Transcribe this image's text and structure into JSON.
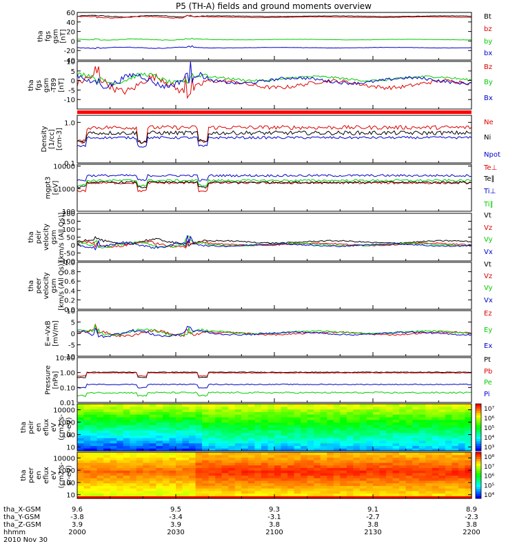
{
  "title": "P5 (TH-A) fields and ground moments overview",
  "chart_data": [
    {
      "type": "line",
      "ylabel": [
        "tha",
        "fgs",
        "gsm",
        "[nT]"
      ],
      "ylim": [
        -40,
        60
      ],
      "yticks": [
        -40,
        -20,
        0,
        20,
        40,
        60
      ],
      "yticklabels": [
        "-40",
        "-20",
        "0",
        "20",
        "40",
        "60"
      ],
      "legend_placement": "right",
      "series": [
        {
          "name": "Bt",
          "color": "#000000",
          "base": 52,
          "amp": 1.0
        },
        {
          "name": "bz",
          "color": "#dd0000",
          "base": 50,
          "amp": 1.0
        },
        {
          "name": "by",
          "color": "#00cc00",
          "base": 3,
          "amp": 0.8
        },
        {
          "name": "bx",
          "color": "#0000cc",
          "base": -14,
          "amp": 0.8
        }
      ]
    },
    {
      "type": "line",
      "ylabel": [
        "tha",
        "fgs",
        "gsm",
        "-T89",
        "[nT]"
      ],
      "ylim": [
        -15,
        10
      ],
      "yticks": [
        -10,
        -5,
        0,
        5,
        10
      ],
      "yticklabels": [
        "-10",
        "-5",
        "0",
        "5",
        "10"
      ],
      "legend_placement": "right",
      "series": [
        {
          "name": "Bz",
          "color": "#dd0000",
          "base": -2,
          "amp": 2.5
        },
        {
          "name": "By",
          "color": "#00cc00",
          "base": 1,
          "amp": 1.5
        },
        {
          "name": "Bx",
          "color": "#0000cc",
          "base": 0,
          "amp": 2.0
        }
      ]
    },
    {
      "type": "line",
      "ylabel": [
        "Density",
        "[1/cc]",
        "[cm-3]"
      ],
      "ylim": [
        0.1,
        1.5
      ],
      "scale": "log",
      "yticks": [
        0.1,
        1.0
      ],
      "yticklabels": [
        "0.1",
        "1.0"
      ],
      "legend_placement": "right",
      "series": [
        {
          "name": "Ne",
          "color": "#dd0000",
          "base": 0.75,
          "amp": 0.05
        },
        {
          "name": "Ni",
          "color": "#000000",
          "base": 0.55,
          "amp": 0.05
        },
        {
          "name": "Npot",
          "color": "#0000cc",
          "base": 0.42,
          "amp": 0.03
        }
      ]
    },
    {
      "type": "line",
      "ylabel": [
        "mgpt3",
        "[eV]"
      ],
      "ylim": [
        100,
        12000
      ],
      "scale": "log",
      "yticks": [
        100,
        1000,
        10000
      ],
      "yticklabels": [
        "100",
        "1000",
        "10000"
      ],
      "legend_placement": "right",
      "series": [
        {
          "name": "Te⊥",
          "color": "#dd0000",
          "base": 1800,
          "amp": 0.05
        },
        {
          "name": "Te∥",
          "color": "#000000",
          "base": 1900,
          "amp": 0.05
        },
        {
          "name": "Ti⊥",
          "color": "#0000cc",
          "base": 3800,
          "amp": 0.05
        },
        {
          "name": "Ti∥",
          "color": "#00cc00",
          "base": 2300,
          "amp": 0.05
        }
      ]
    },
    {
      "type": "line",
      "ylabel": [
        "tha",
        "peir",
        "velocity",
        "gsm",
        "[km/s (All Qs)]"
      ],
      "ylim": [
        -100,
        200
      ],
      "yticks": [
        -100,
        -50,
        0,
        50,
        100,
        150,
        200
      ],
      "yticklabels": [
        "-100",
        "-50",
        "0",
        "50",
        "100",
        "150",
        "200"
      ],
      "legend_placement": "right",
      "series": [
        {
          "name": "Vt",
          "color": "#000000",
          "base": 20,
          "amp": 10
        },
        {
          "name": "Vz",
          "color": "#dd0000",
          "base": 5,
          "amp": 10
        },
        {
          "name": "Vy",
          "color": "#00cc00",
          "base": 3,
          "amp": 10
        },
        {
          "name": "Vx",
          "color": "#0000cc",
          "base": 0,
          "amp": 10
        }
      ]
    },
    {
      "type": "line",
      "ylabel": [
        "tha",
        "peer",
        "velocity",
        "gsm",
        "[km/s (All Qs)]"
      ],
      "ylim": [
        0.0,
        1.0
      ],
      "yticks": [
        0.0,
        0.2,
        0.4,
        0.6,
        0.8,
        1.0
      ],
      "yticklabels": [
        "0.0",
        "0.2",
        "0.4",
        "0.6",
        "0.8",
        "1.0"
      ],
      "legend_placement": "right",
      "series": [
        {
          "name": "Vt",
          "color": "#000000"
        },
        {
          "name": "Vz",
          "color": "#dd0000"
        },
        {
          "name": "Vy",
          "color": "#00cc00"
        },
        {
          "name": "Vx",
          "color": "#0000cc"
        }
      ]
    },
    {
      "type": "line",
      "ylabel": [
        "E=-VxB",
        "[mV/m]"
      ],
      "ylim": [
        -10,
        10
      ],
      "yticks": [
        -10,
        -5,
        0,
        5,
        10
      ],
      "yticklabels": [
        "-10",
        "-5",
        "0",
        "5",
        "10"
      ],
      "legend_placement": "right",
      "series": [
        {
          "name": "Ez",
          "color": "#dd0000",
          "base": 0,
          "amp": 0.8
        },
        {
          "name": "Ey",
          "color": "#00cc00",
          "base": 0.5,
          "amp": 0.8
        },
        {
          "name": "Ex",
          "color": "#0000cc",
          "base": 0,
          "amp": 0.8
        }
      ]
    },
    {
      "type": "line",
      "ylabel": [
        "Pressure",
        "[nPa]"
      ],
      "ylim": [
        0.01,
        10
      ],
      "scale": "log",
      "yticks": [
        0.01,
        0.1,
        1.0,
        10.0
      ],
      "yticklabels": [
        "0.01",
        "0.10",
        "1.00",
        "10.00"
      ],
      "legend_placement": "right",
      "series": [
        {
          "name": "Pt",
          "color": "#000000",
          "base": 1.05,
          "amp": 0.02
        },
        {
          "name": "Pb",
          "color": "#dd0000",
          "base": 0.95,
          "amp": 0.02
        },
        {
          "name": "Pe",
          "color": "#00cc00",
          "base": 0.045,
          "amp": 0.05
        },
        {
          "name": "Pi",
          "color": "#0000cc",
          "base": 0.16,
          "amp": 0.03
        }
      ]
    },
    {
      "type": "heatmap",
      "ylabel": [
        "tha",
        "peir",
        "en",
        "eflux",
        "eV",
        "(cm2-s-",
        "sr-eV)"
      ],
      "ylim": [
        5,
        30000
      ],
      "scale": "log",
      "yticks": [
        10,
        100,
        1000,
        10000
      ],
      "yticklabels": [
        "10",
        "100",
        "1000",
        "10000"
      ],
      "colorbar": {
        "ticks": [
          "10⁷",
          "10⁶",
          "10⁵",
          "10⁴",
          "10³"
        ]
      }
    },
    {
      "type": "heatmap",
      "ylabel": [
        "tha",
        "peer",
        "en",
        "eflux",
        "eV",
        "(cm2-s-",
        "sr-eV)"
      ],
      "ylim": [
        5,
        30000
      ],
      "scale": "log",
      "yticks": [
        10,
        100,
        1000,
        10000
      ],
      "yticklabels": [
        "10",
        "100",
        "1000",
        "10000"
      ],
      "colorbar": {
        "ticks": [
          "10⁸",
          "10⁷",
          "10⁶",
          "10⁵",
          "10⁴"
        ]
      }
    }
  ],
  "x_axis": {
    "row_labels": [
      "tha_X-GSM",
      "tha_Y-GSM",
      "tha_Z-GSM",
      "hhmm",
      "2010 Nov 30"
    ],
    "ticks": [
      {
        "x": "9.6",
        "y": "-3.8",
        "z": "3.9",
        "hhmm": "2000"
      },
      {
        "x": "9.5",
        "y": "-3.4",
        "z": "3.9",
        "hhmm": "2030"
      },
      {
        "x": "9.3",
        "y": "-3.1",
        "z": "3.8",
        "hhmm": "2100"
      },
      {
        "x": "9.1",
        "y": "-2.7",
        "z": "3.8",
        "hhmm": "2130"
      },
      {
        "x": "8.9",
        "y": "-2.3",
        "z": "3.8",
        "hhmm": "2200"
      }
    ]
  }
}
